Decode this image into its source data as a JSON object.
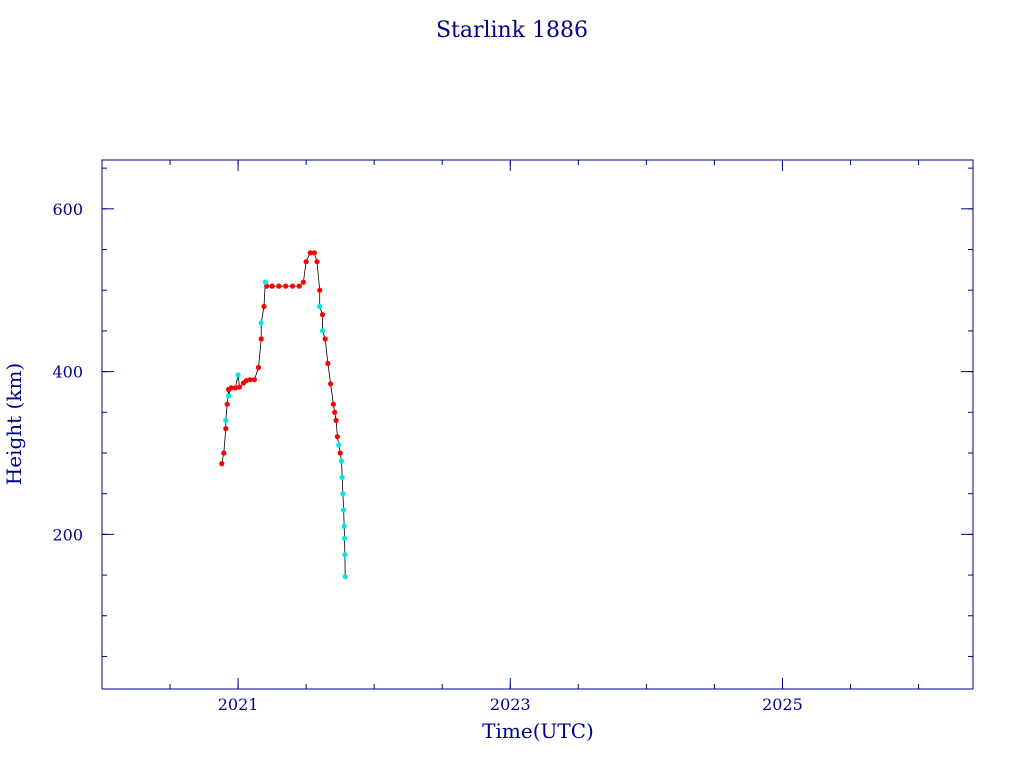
{
  "chart_data": {
    "type": "scatter",
    "title": "Starlink 1886",
    "xlabel": "Time(UTC)",
    "ylabel": "Height (km)",
    "xlim": [
      2020.0,
      2026.4
    ],
    "ylim": [
      10,
      660
    ],
    "x_ticks": [
      2021,
      2023,
      2025
    ],
    "x_tick_labels": [
      "2021",
      "2023",
      "2025"
    ],
    "y_ticks": [
      200,
      400,
      600
    ],
    "y_tick_labels": [
      "200",
      "400",
      "600"
    ],
    "grid": false,
    "colors": {
      "axis": "#00008b",
      "text": "#00008b",
      "series_primary": "#ff0000",
      "series_secondary": "#00e5ee",
      "line": "#000000"
    },
    "series": [
      {
        "color": "#ff0000",
        "points": [
          [
            2020.88,
            287
          ],
          [
            2020.895,
            300
          ],
          [
            2020.91,
            330
          ],
          [
            2020.92,
            360
          ],
          [
            2020.93,
            378
          ],
          [
            2020.95,
            380
          ],
          [
            2020.98,
            380
          ],
          [
            2021.01,
            381
          ],
          [
            2021.04,
            386
          ],
          [
            2021.06,
            389
          ],
          [
            2021.09,
            390
          ],
          [
            2021.12,
            390
          ],
          [
            2021.15,
            405
          ],
          [
            2021.17,
            440
          ],
          [
            2021.19,
            480
          ],
          [
            2021.21,
            505
          ],
          [
            2021.25,
            505
          ],
          [
            2021.3,
            505
          ],
          [
            2021.35,
            505
          ],
          [
            2021.4,
            505
          ],
          [
            2021.45,
            505
          ],
          [
            2021.48,
            510
          ],
          [
            2021.5,
            535
          ],
          [
            2021.53,
            546
          ],
          [
            2021.56,
            546
          ],
          [
            2021.58,
            535
          ],
          [
            2021.6,
            500
          ],
          [
            2021.62,
            470
          ],
          [
            2021.64,
            440
          ],
          [
            2021.66,
            410
          ],
          [
            2021.68,
            385
          ],
          [
            2021.7,
            360
          ],
          [
            2021.71,
            350
          ],
          [
            2021.72,
            340
          ],
          [
            2021.73,
            320
          ],
          [
            2021.75,
            300
          ]
        ]
      },
      {
        "color": "#00e5ee",
        "points": [
          [
            2020.91,
            340
          ],
          [
            2020.93,
            370
          ],
          [
            2021.0,
            396
          ],
          [
            2021.17,
            460
          ],
          [
            2021.2,
            510
          ],
          [
            2021.6,
            480
          ],
          [
            2021.62,
            450
          ],
          [
            2021.74,
            310
          ],
          [
            2021.76,
            290
          ],
          [
            2021.765,
            270
          ],
          [
            2021.77,
            250
          ],
          [
            2021.775,
            230
          ],
          [
            2021.78,
            210
          ],
          [
            2021.782,
            195
          ],
          [
            2021.785,
            175
          ],
          [
            2021.787,
            148
          ]
        ]
      }
    ]
  }
}
